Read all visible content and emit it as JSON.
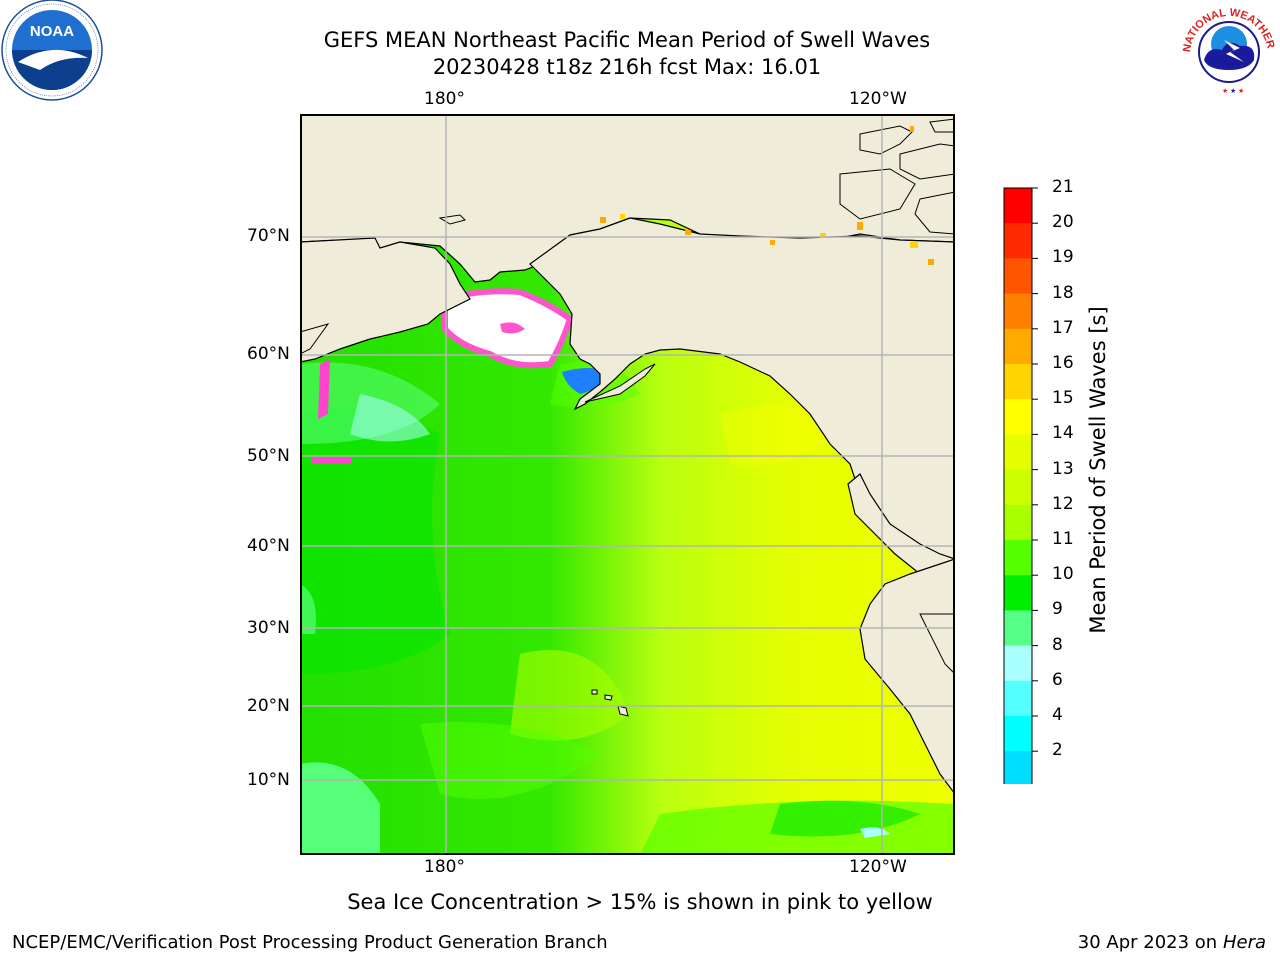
{
  "title": {
    "line1": "GEFS MEAN Northeast Pacific Mean Period of Swell Waves",
    "line2": "20230428 t18z 216h fcst   Max: 16.01"
  },
  "map": {
    "lon_labels": [
      "180°",
      "120°W"
    ],
    "lat_labels": [
      "70°N",
      "60°N",
      "50°N",
      "40°N",
      "30°N",
      "20°N",
      "10°N"
    ],
    "note": "Sea Ice Concentration > 15% is shown in pink to yellow"
  },
  "colorbar": {
    "label": "Mean Period of Swell Waves [s]",
    "ticks": [
      "21",
      "20",
      "19",
      "18",
      "17",
      "16",
      "15",
      "14",
      "13",
      "12",
      "11",
      "10",
      "9",
      "8",
      "6",
      "4",
      "2"
    ],
    "colors": [
      "#ff0000",
      "#ff2a00",
      "#ff5500",
      "#ff7f00",
      "#ffaa00",
      "#ffd400",
      "#ffff00",
      "#e6ff00",
      "#ccff00",
      "#aaff00",
      "#55ff00",
      "#00ee00",
      "#55ff88",
      "#aaffff",
      "#55ffff",
      "#00ffff",
      "#00ddff",
      "#0077ff"
    ],
    "under_color": "#0000ff"
  },
  "logos": {
    "left": "NOAA",
    "right": "NATIONAL WEATHER SERVICE"
  },
  "footer": {
    "left": "NCEP/EMC/Verification Post Processing Product Generation Branch",
    "right_prefix": "30 Apr 2023 on ",
    "right_machine": "Hera"
  }
}
